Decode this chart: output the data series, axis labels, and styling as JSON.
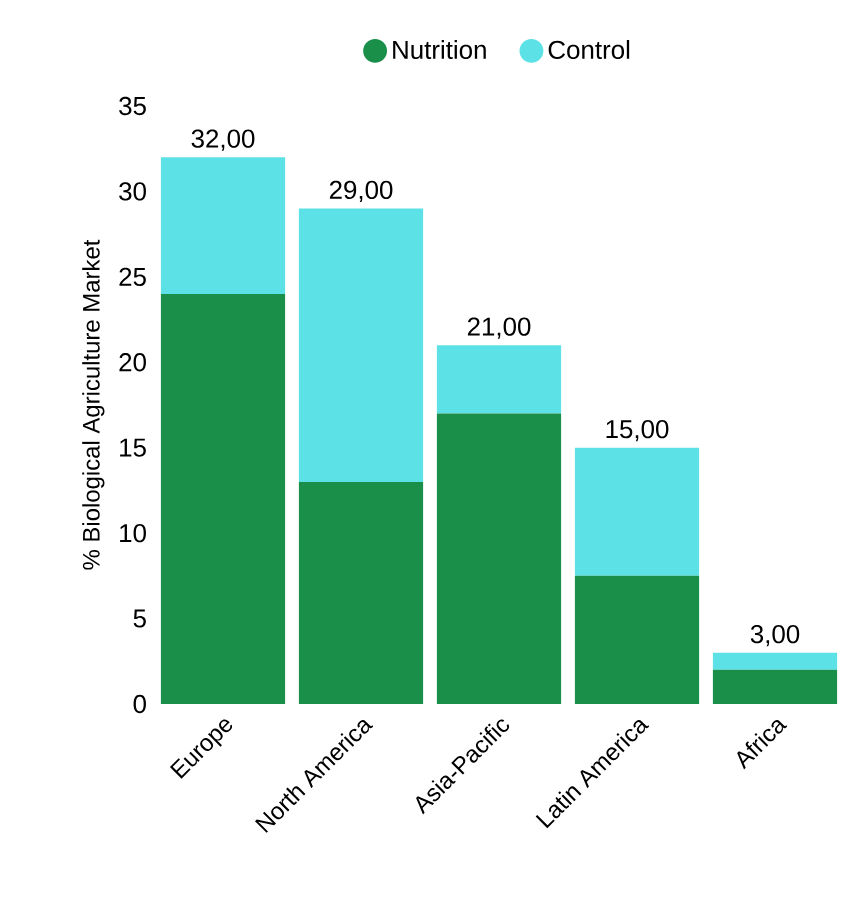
{
  "chart_data": {
    "type": "bar",
    "stacked": true,
    "ylabel": "% Biological Agriculture Market",
    "categories": [
      "Europe",
      "North America",
      "Asia-Pacific",
      "Latin America",
      "Africa"
    ],
    "series": [
      {
        "name": "Nutrition",
        "color": "#1a8f4a",
        "values": [
          24,
          13,
          17,
          7.5,
          2
        ]
      },
      {
        "name": "Control",
        "color": "#5ce1e6",
        "values": [
          8,
          16,
          4,
          7.5,
          1
        ]
      }
    ],
    "totals": [
      "32,00",
      "29,00",
      "21,00",
      "15,00",
      "3,00"
    ],
    "ylim": [
      0,
      35
    ],
    "yticks": [
      0,
      5,
      10,
      15,
      20,
      25,
      30,
      35
    ],
    "grid": false,
    "legend": "top"
  }
}
